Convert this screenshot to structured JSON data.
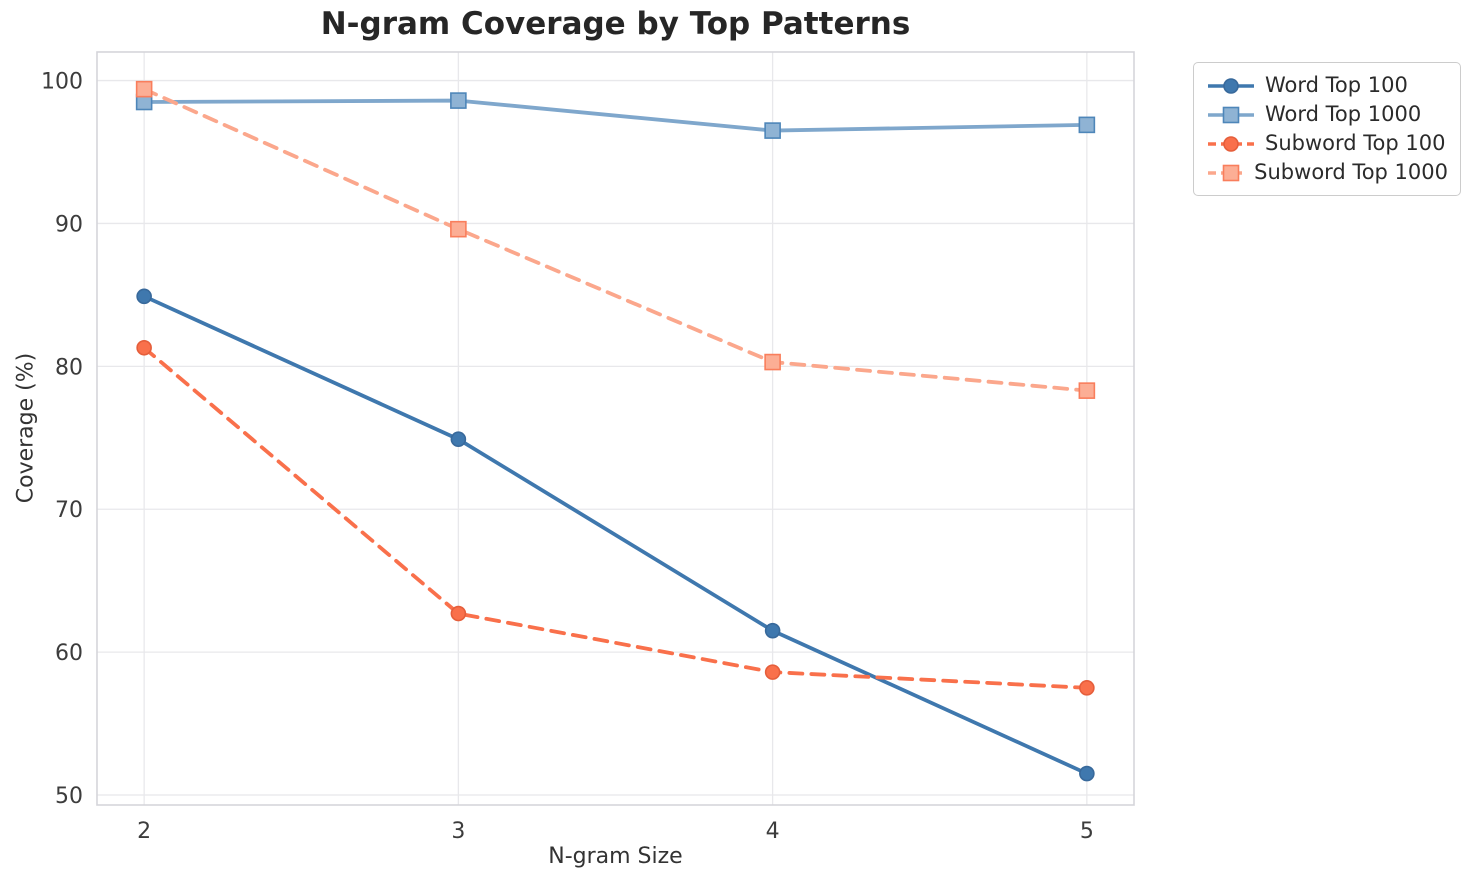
{
  "figure": {
    "title": "N-gram Coverage by Top Patterns",
    "xlabel": "N-gram Size",
    "ylabel": "Coverage (%)"
  },
  "chart_data": {
    "type": "line",
    "title": "N-gram Coverage by Top Patterns",
    "xlabel": "N-gram Size",
    "ylabel": "Coverage (%)",
    "x": [
      2,
      3,
      4,
      5
    ],
    "xticks": [
      2,
      3,
      4,
      5
    ],
    "yticks": [
      50,
      60,
      70,
      80,
      90,
      100
    ],
    "xlim": [
      1.85,
      5.15
    ],
    "ylim": [
      49.3,
      102.0
    ],
    "grid": true,
    "legend_position": "outside-top-right",
    "series": [
      {
        "name": "Word Top 100",
        "values": [
          84.9,
          74.9,
          61.5,
          51.5
        ],
        "marker": "circle",
        "dash": "solid",
        "line_color": "#3F78AE",
        "marker_fill": "#3F78AE",
        "marker_edge": "#38699B"
      },
      {
        "name": "Word Top 1000",
        "values": [
          98.5,
          98.6,
          96.5,
          96.9
        ],
        "marker": "square",
        "dash": "solid",
        "line_color": "#7FA7CC",
        "marker_fill": "#8FB3D4",
        "marker_edge": "#4E86B9"
      },
      {
        "name": "Subword Top 100",
        "values": [
          81.3,
          62.7,
          58.6,
          57.5
        ],
        "marker": "circle",
        "dash": "dashed",
        "line_color": "#F9704B",
        "marker_fill": "#F9704B",
        "marker_edge": "#E55E3B"
      },
      {
        "name": "Subword Top 1000",
        "values": [
          99.4,
          89.6,
          80.3,
          78.3
        ],
        "marker": "square",
        "dash": "dashed",
        "line_color": "#FBA78C",
        "marker_fill": "#FCAE95",
        "marker_edge": "#F97E5C"
      }
    ],
    "colors": {
      "grid": "#E8E8EB",
      "spine": "#D5D5DA",
      "tick_label": "#3C3C3C",
      "title": "#262626",
      "axis_label": "#333333",
      "background": "#FFFFFF",
      "legend_border": "#CCCCCC"
    }
  }
}
